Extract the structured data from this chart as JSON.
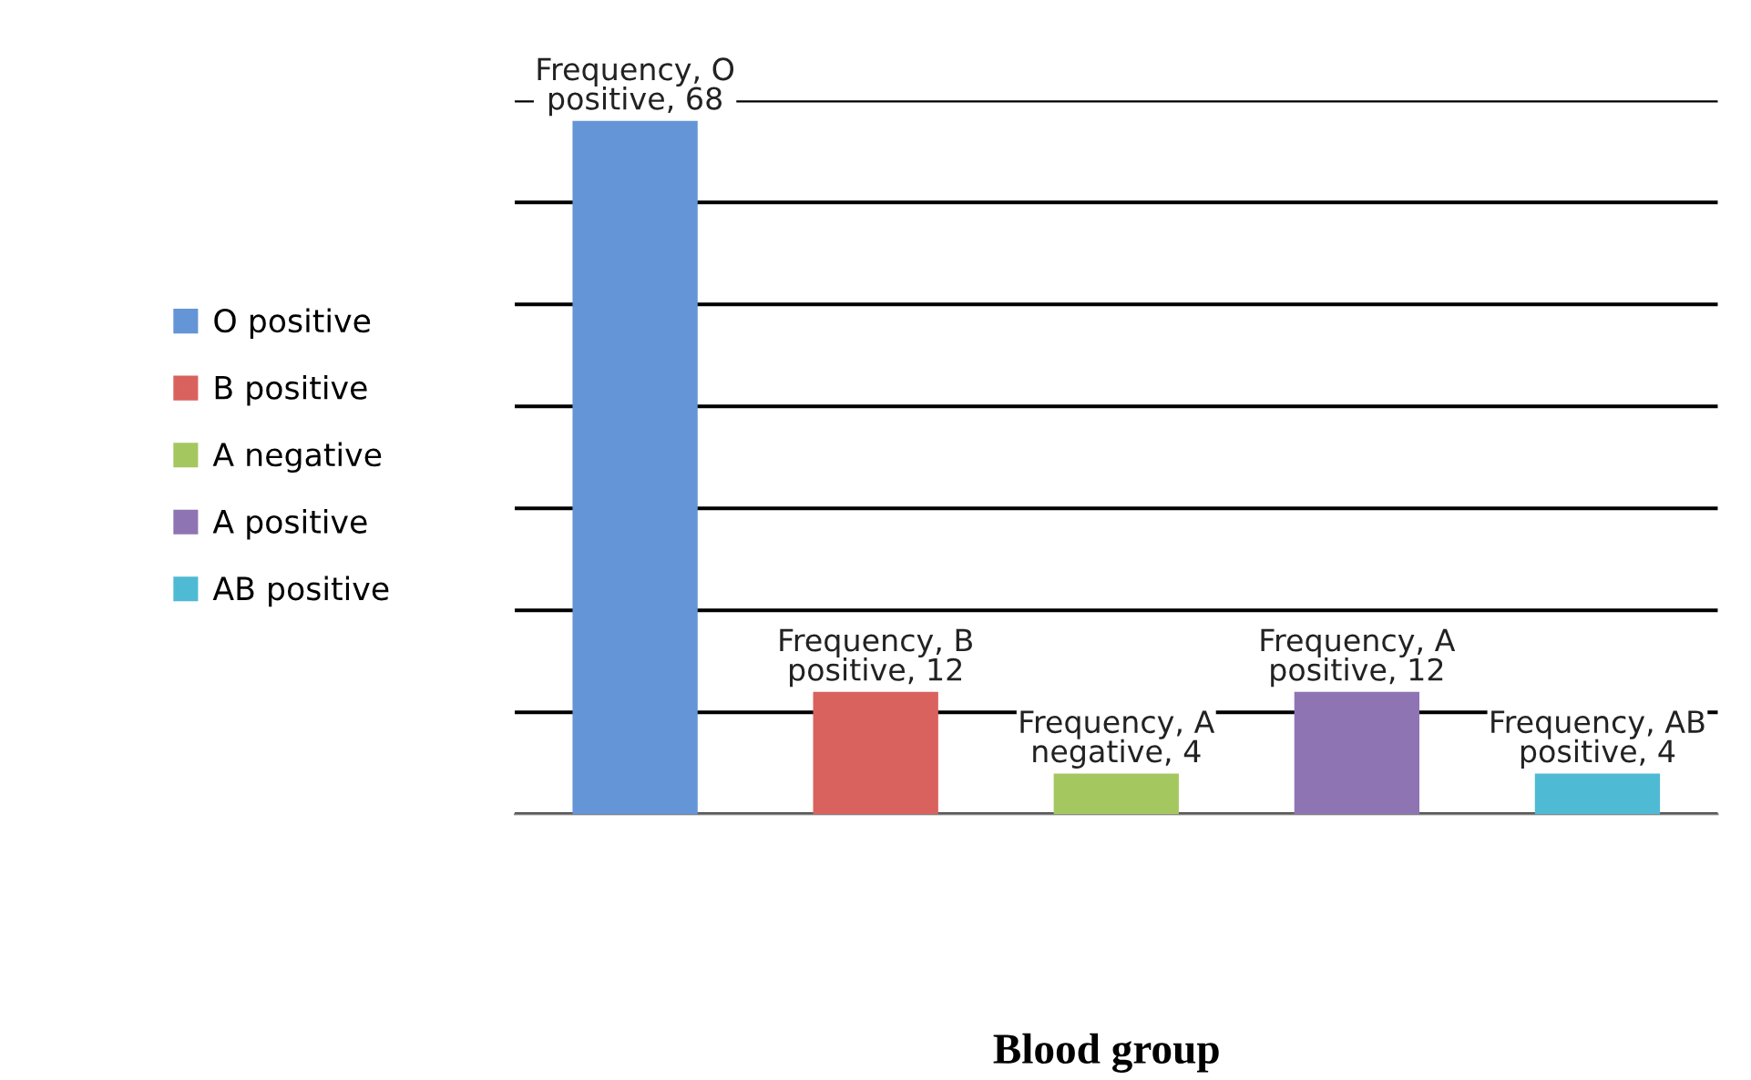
{
  "chart_data": {
    "type": "bar",
    "stacked": true,
    "annotations": [
      "Blood group"
    ],
    "categories": [
      null,
      null,
      null,
      null,
      null
    ],
    "series": [
      {
        "name": "O positive",
        "color": "#6495d6",
        "values": [
          68,
          null,
          null,
          null,
          null
        ],
        "value_labels": [
          "Frequency, O positive, 68",
          null,
          null,
          null,
          null
        ]
      },
      {
        "name": "B positive",
        "color": "#d9625e",
        "values": [
          null,
          12,
          null,
          null,
          null
        ],
        "value_labels": [
          null,
          "Frequency, B positive, 12",
          null,
          null,
          null
        ]
      },
      {
        "name": "A negative",
        "color": "#a5c75f",
        "values": [
          null,
          null,
          4,
          null,
          null
        ],
        "value_labels": [
          null,
          null,
          "Frequency, A negative, 4",
          null,
          null
        ]
      },
      {
        "name": "A positive",
        "color": "#8f74b3",
        "values": [
          null,
          null,
          null,
          12,
          null
        ],
        "value_labels": [
          null,
          null,
          null,
          "Frequency, A positive, 12",
          null
        ]
      },
      {
        "name": "AB positive",
        "color": "#4fbad3",
        "values": [
          null,
          null,
          null,
          null,
          4
        ],
        "value_labels": [
          null,
          null,
          null,
          null,
          "Frequency, AB positive, 4"
        ]
      }
    ],
    "ylim": [
      0,
      70
    ],
    "yticks": [
      {
        "value": 0,
        "label": null
      },
      {
        "value": 10,
        "label": null
      },
      {
        "value": 20,
        "label": null
      },
      {
        "value": 30,
        "label": null
      },
      {
        "value": 40,
        "label": null
      },
      {
        "value": 50,
        "label": null
      },
      {
        "value": 60,
        "label": null
      },
      {
        "value": 70,
        "label": null
      }
    ],
    "grid": "y",
    "legend": "left",
    "tick_labels": false
  }
}
